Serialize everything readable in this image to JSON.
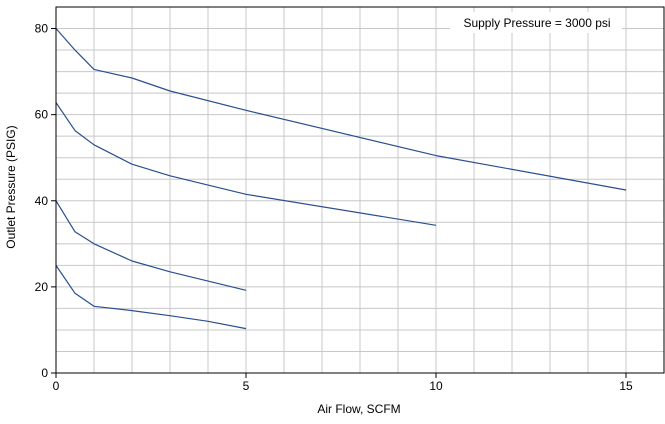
{
  "chart_data": {
    "type": "line",
    "annotation": "Supply Pressure = 3000 psi",
    "xlabel": "Air Flow, SCFM",
    "ylabel": "Outlet Pressure (PSIG)",
    "xlim": [
      0,
      16
    ],
    "ylim": [
      0,
      85
    ],
    "x_ticks": [
      0,
      5,
      10,
      15
    ],
    "y_ticks": [
      0,
      20,
      40,
      60,
      80
    ],
    "x_minor_step": 1,
    "y_minor_step": 5,
    "grid": true,
    "line_color": "#2a4f8f",
    "series": [
      {
        "x": [
          0,
          0.5,
          1,
          2,
          3,
          5,
          10,
          15
        ],
        "y": [
          80,
          75,
          70.5,
          68.5,
          65.5,
          61,
          50.5,
          42.5
        ]
      },
      {
        "x": [
          0,
          0.5,
          1,
          2,
          3,
          5,
          10
        ],
        "y": [
          62.8,
          56.3,
          53,
          48.5,
          45.8,
          41.5,
          34.3
        ]
      },
      {
        "x": [
          0,
          0.5,
          1,
          2,
          3,
          5
        ],
        "y": [
          40,
          32.8,
          30,
          26,
          23.5,
          19.2
        ]
      },
      {
        "x": [
          0,
          0.5,
          1,
          2,
          3,
          4,
          5
        ],
        "y": [
          25,
          18.5,
          15.5,
          14.5,
          13.3,
          12,
          10.3
        ]
      }
    ]
  }
}
